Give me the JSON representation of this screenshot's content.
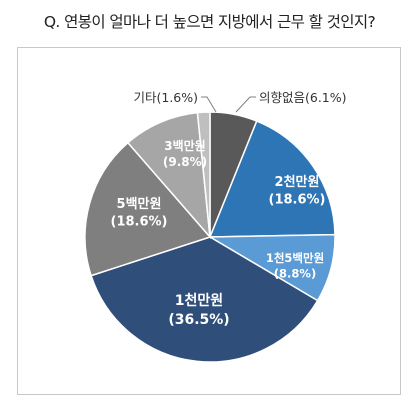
{
  "title": "Q. 연봉이 얼마나 더 높으면 지방에서 근무 할 것인지?",
  "chart_data": {
    "type": "pie",
    "title": "Q. 연봉이 얼마나 더 높으면 지방에서 근무 할 것인지?",
    "slices": [
      {
        "label": "의향없음",
        "value": 6.1,
        "pct": "(6.1%)",
        "color": "#595959",
        "display": "callout",
        "callout_text": "의향없음(6.1%)"
      },
      {
        "label": "2천만원",
        "value": 18.6,
        "pct": "(18.6%)",
        "color": "#2e75b6",
        "display": "inside"
      },
      {
        "label": "1천5백만원",
        "value": 8.8,
        "pct": "(8.8%)",
        "color": "#5b9bd5",
        "display": "inside"
      },
      {
        "label": "1천만원",
        "value": 36.5,
        "pct": "(36.5%)",
        "color": "#2f4f7a",
        "display": "inside"
      },
      {
        "label": "5백만원",
        "value": 18.6,
        "pct": "(18.6%)",
        "color": "#7f7f7f",
        "display": "inside"
      },
      {
        "label": "3백만원",
        "value": 9.8,
        "pct": "(9.8%)",
        "color": "#a6a6a6",
        "display": "inside"
      },
      {
        "label": "기타",
        "value": 1.6,
        "pct": "(1.6%)",
        "color": "#bfbfbf",
        "display": "callout",
        "callout_text": "기타(1.6%)"
      }
    ]
  }
}
